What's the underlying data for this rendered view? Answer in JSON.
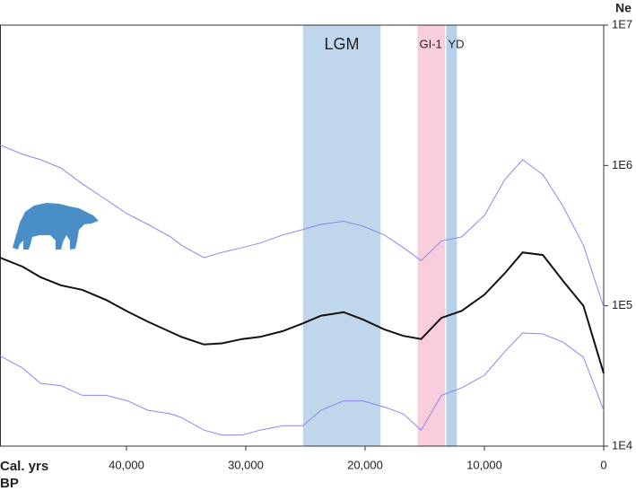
{
  "chart_data": {
    "type": "line",
    "x_label": "Cal. yrs BP",
    "y_label": "Ne",
    "x": [
      50600,
      48700,
      47200,
      45500,
      43700,
      41700,
      39900,
      38200,
      36300,
      35400,
      33500,
      32000,
      30300,
      28800,
      26900,
      25200,
      23700,
      21800,
      20200,
      18400,
      16800,
      15300,
      13600,
      11900,
      10000,
      8300,
      6800,
      5100,
      3400,
      1700,
      0
    ],
    "series": [
      {
        "name": "upper",
        "color": "#8a86ee",
        "width": 1,
        "values": [
          1400000,
          1200000,
          1100000,
          960000,
          740000,
          570000,
          450000,
          380000,
          310000,
          270000,
          220000,
          240000,
          260000,
          280000,
          320000,
          350000,
          380000,
          400000,
          370000,
          320000,
          260000,
          210000,
          290000,
          310000,
          440000,
          790000,
          1100000,
          860000,
          510000,
          270000,
          98000
        ]
      },
      {
        "name": "median",
        "color": "#111111",
        "width": 2,
        "values": [
          220000,
          190000,
          160000,
          140000,
          130000,
          110000,
          91000,
          77000,
          65000,
          60000,
          53000,
          54000,
          58000,
          60000,
          66000,
          75000,
          85000,
          90000,
          80000,
          68000,
          61000,
          58000,
          82000,
          92000,
          120000,
          170000,
          240000,
          230000,
          150000,
          100000,
          33000
        ]
      },
      {
        "name": "lower",
        "color": "#8a86ee",
        "width": 1,
        "values": [
          44000,
          36000,
          28000,
          27000,
          23000,
          23000,
          21000,
          18000,
          17000,
          16000,
          13000,
          12000,
          12000,
          13000,
          14000,
          14000,
          18000,
          21000,
          21000,
          19000,
          17000,
          13000,
          23000,
          26000,
          32000,
          47000,
          64000,
          63000,
          55000,
          43000,
          18000
        ]
      }
    ],
    "bands": [
      {
        "label": "LGM",
        "start": 25200,
        "end": 18700,
        "color": "#b5cfe8"
      },
      {
        "label": "GI-1",
        "start": 15600,
        "end": 13300,
        "color": "#f7c6d6"
      },
      {
        "label": "YD",
        "start": 13200,
        "end": 12300,
        "color": "#a9c9e6"
      }
    ],
    "xlim": [
      50600,
      0
    ],
    "xticks": [
      {
        "value": 40000,
        "label": "40,000"
      },
      {
        "value": 30000,
        "label": "30,000"
      },
      {
        "value": 20000,
        "label": "20,000"
      },
      {
        "value": 10000,
        "label": "10,000"
      },
      0
    ],
    "ylim": [
      10000,
      10000000
    ],
    "yticks": [
      {
        "value": 10000,
        "label": "1E4"
      },
      {
        "value": 100000,
        "label": "1E5"
      },
      {
        "value": 1000000,
        "label": "1E6"
      },
      {
        "value": 10000000,
        "label": "1E7"
      }
    ],
    "log_y": true,
    "grid": false
  }
}
